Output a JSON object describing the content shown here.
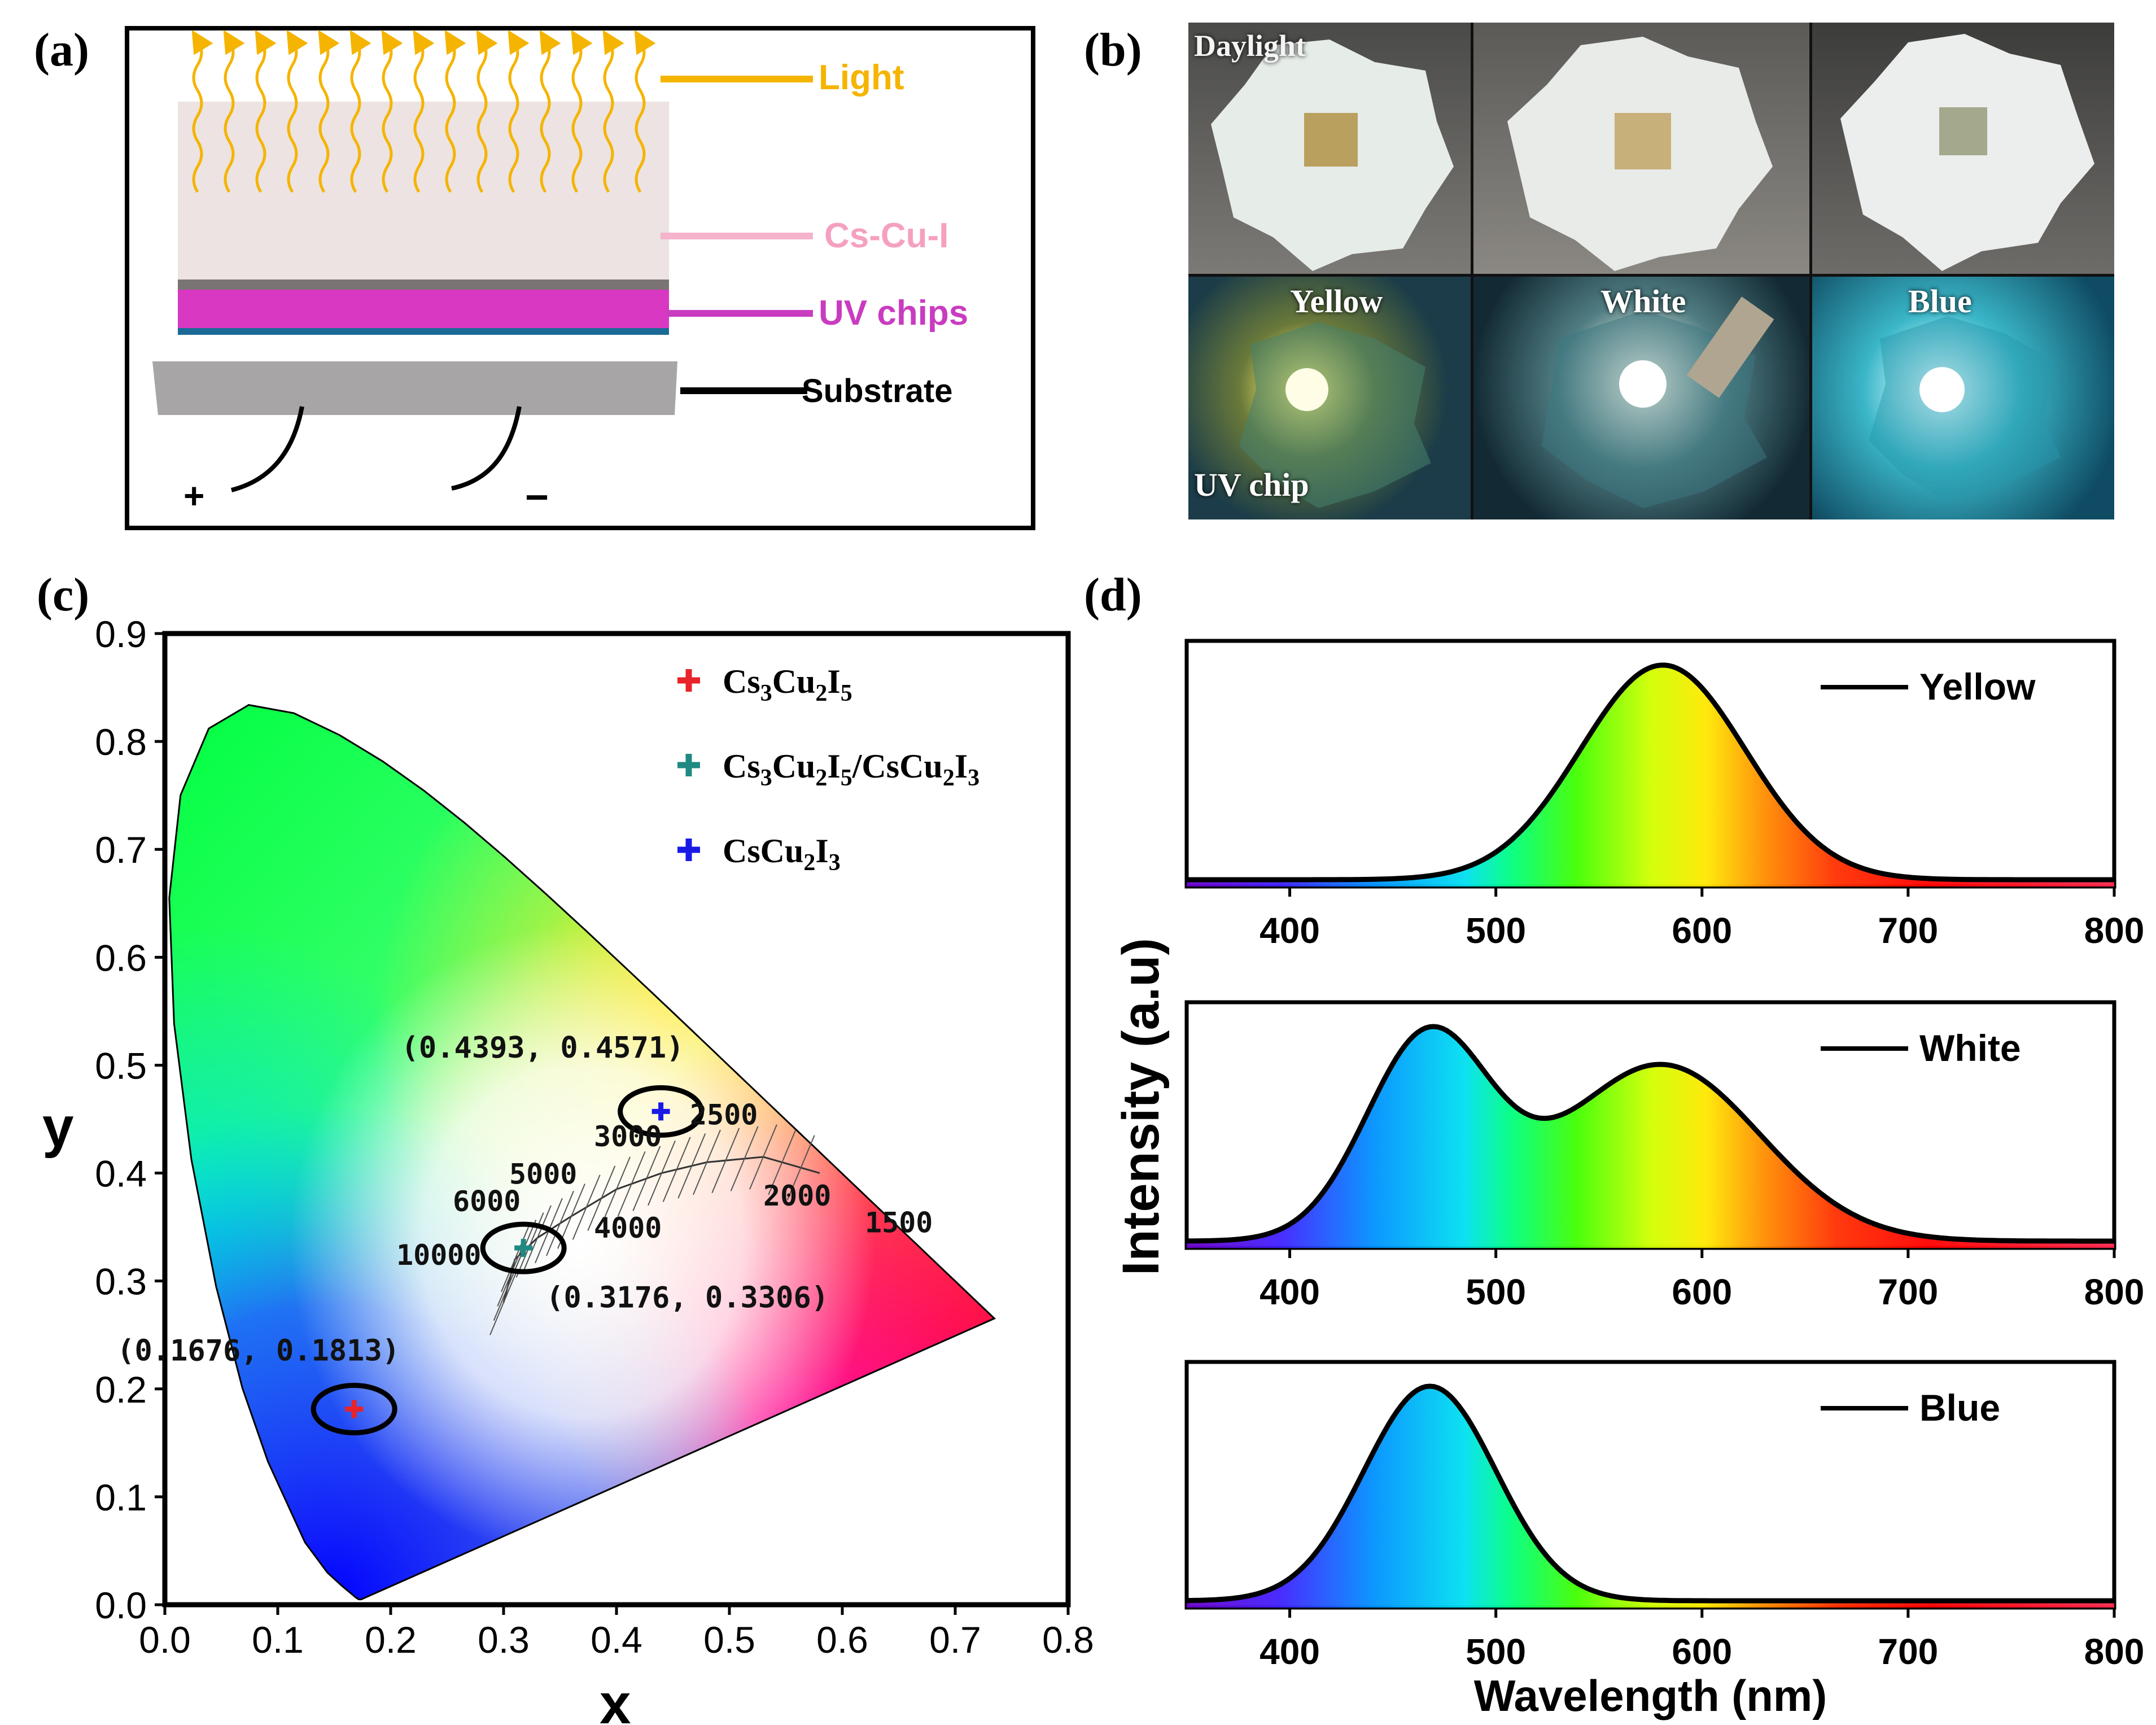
{
  "panels": {
    "a": "(a)",
    "b": "(b)",
    "c": "(c)",
    "d": "(d)"
  },
  "panel_a": {
    "light": "Light",
    "cscui": "Cs-Cu-I",
    "uvchips": "UV chips",
    "substrate": "Substrate",
    "plus": "+",
    "minus": "−",
    "colors": {
      "light": "#f5b400",
      "cscui": "#f5a0c0",
      "uvchips": "#c93cc0",
      "substrate": "#000000"
    }
  },
  "panel_b": {
    "daylight": "Daylight",
    "uvchip": "UV chip",
    "yellow": "Yellow",
    "white": "White",
    "blue": "Blue"
  },
  "chart_data": [
    {
      "type": "scatter",
      "panel": "c",
      "xlabel": "x",
      "ylabel": "y",
      "xlim": [
        0.0,
        0.8
      ],
      "ylim": [
        0.0,
        0.9
      ],
      "xticks": [
        "0.0",
        "0.1",
        "0.2",
        "0.3",
        "0.4",
        "0.5",
        "0.6",
        "0.7",
        "0.8"
      ],
      "yticks": [
        "0.0",
        "0.1",
        "0.2",
        "0.3",
        "0.4",
        "0.5",
        "0.6",
        "0.7",
        "0.8",
        "0.9"
      ],
      "legend_position": "top-right",
      "series": [
        {
          "name": "Cs3Cu2I5",
          "name_sub": [
            "Cs",
            "3",
            "Cu",
            "2",
            "I",
            "5"
          ],
          "color": "#e8232a",
          "points": [
            [
              0.1676,
              0.1813
            ]
          ],
          "label": "(0.1676, 0.1813)"
        },
        {
          "name": "Cs3Cu2I5/CsCu2I3",
          "name_sub": [
            "Cs",
            "3",
            "Cu",
            "2",
            "I",
            "5",
            "/CsCu",
            "2",
            "I",
            "3"
          ],
          "color": "#1f8a82",
          "points": [
            [
              0.3176,
              0.3306
            ]
          ],
          "label": "(0.3176, 0.3306)"
        },
        {
          "name": "CsCu2I3",
          "name_sub": [
            "CsCu",
            "2",
            "I",
            "3"
          ],
          "color": "#1a1ae6",
          "points": [
            [
              0.4393,
              0.4571
            ]
          ],
          "label": "(0.4393, 0.4571)"
        }
      ],
      "cct_labels": [
        "10000",
        "6000",
        "5000",
        "4000",
        "3000",
        "2500",
        "2000",
        "1500"
      ]
    },
    {
      "type": "area",
      "panel": "d",
      "xlabel": "Wavelength (nm)",
      "ylabel": "Intensity (a.u)",
      "xlim": [
        350,
        800
      ],
      "xticks": [
        "400",
        "500",
        "600",
        "700",
        "800"
      ],
      "series": [
        {
          "name": "Yellow",
          "peaks": [
            {
              "center": 581,
              "sigma": 40,
              "amp": 1.0
            }
          ]
        },
        {
          "name": "White",
          "peaks": [
            {
              "center": 467,
              "sigma": 30,
              "amp": 0.85
            },
            {
              "center": 580,
              "sigma": 48,
              "amp": 0.74
            }
          ]
        },
        {
          "name": "Blue",
          "peaks": [
            {
              "center": 468,
              "sigma": 32,
              "amp": 1.0
            }
          ]
        }
      ]
    }
  ]
}
